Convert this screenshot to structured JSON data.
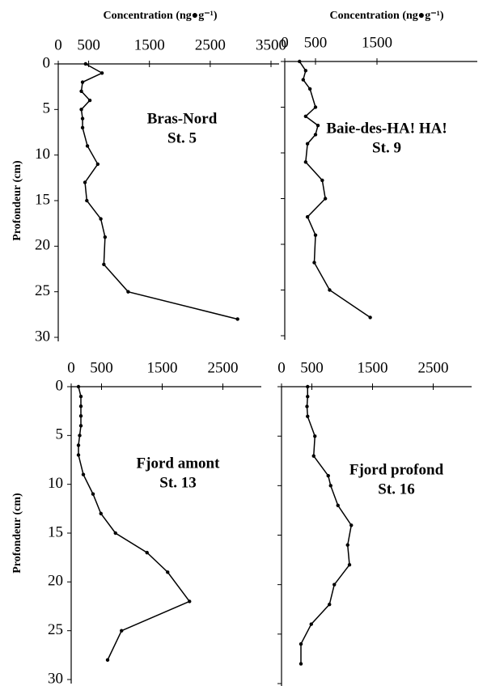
{
  "chart_data": [
    {
      "type": "line",
      "title": "Bras-Nord",
      "subtitle": "St. 5",
      "x_label": "Concentration (ng●g⁻¹)",
      "y_label": "Profondeur (cm)",
      "depth": [
        0,
        1,
        2,
        3,
        4,
        5,
        6,
        7,
        9,
        11,
        13,
        15,
        17,
        19,
        22,
        25,
        28
      ],
      "values": [
        450,
        720,
        400,
        380,
        520,
        380,
        400,
        400,
        480,
        650,
        440,
        470,
        700,
        770,
        750,
        1150,
        2950
      ],
      "xlim": [
        0,
        3500
      ],
      "xticks": [
        0,
        500,
        1500,
        2500,
        3500
      ],
      "ylim": [
        0,
        30
      ],
      "yticks": [
        0,
        5,
        10,
        15,
        20,
        25,
        30
      ],
      "ytick_labels": true,
      "color": "#000000"
    },
    {
      "type": "line",
      "title": "Baie-des-HA! HA!",
      "subtitle": "St. 9",
      "x_label": "Concentration (ng●g⁻¹)",
      "depth": [
        0,
        1,
        2,
        3,
        5,
        6,
        7,
        8,
        9,
        11,
        13,
        15,
        17,
        19,
        22,
        25,
        28
      ],
      "values": [
        240,
        340,
        300,
        410,
        500,
        340,
        540,
        500,
        370,
        340,
        610,
        660,
        370,
        500,
        480,
        730,
        1390
      ],
      "xlim": [
        0,
        3000
      ],
      "xticks": [
        0,
        500,
        1500
      ],
      "ylim": [
        0,
        30
      ],
      "yticks": [
        0,
        5,
        10,
        15,
        20,
        25,
        30
      ],
      "ytick_labels": false,
      "color": "#000000"
    },
    {
      "type": "line",
      "title": "Fjord amont",
      "subtitle": "St. 13",
      "y_label": "Profondeur (cm)",
      "depth": [
        0,
        1,
        2,
        3,
        4,
        5,
        6,
        7,
        9,
        11,
        13,
        15,
        17,
        19,
        22,
        25,
        28
      ],
      "values": [
        120,
        160,
        160,
        160,
        160,
        140,
        120,
        120,
        200,
        360,
        490,
        730,
        1250,
        1590,
        1950,
        830,
        600
      ],
      "xlim": [
        0,
        3000
      ],
      "xticks": [
        0,
        500,
        1500,
        2500
      ],
      "ylim": [
        0,
        30
      ],
      "yticks": [
        0,
        5,
        10,
        15,
        20,
        25,
        30
      ],
      "ytick_labels": true,
      "color": "#000000"
    },
    {
      "type": "line",
      "title": "Fjord profond",
      "subtitle": "St. 16",
      "depth": [
        0,
        1,
        2,
        3,
        5,
        7,
        9,
        10,
        12,
        14,
        16,
        18,
        20,
        22,
        24,
        26,
        28
      ],
      "values": [
        430,
        430,
        420,
        430,
        550,
        530,
        770,
        810,
        930,
        1150,
        1090,
        1120,
        870,
        790,
        490,
        320,
        320
      ],
      "xlim": [
        0,
        3000
      ],
      "xticks": [
        0,
        500,
        1500,
        2500
      ],
      "ylim": [
        0,
        30
      ],
      "yticks": [
        0,
        5,
        10,
        15,
        20,
        25,
        30
      ],
      "ytick_labels": false,
      "color": "#000000"
    }
  ]
}
